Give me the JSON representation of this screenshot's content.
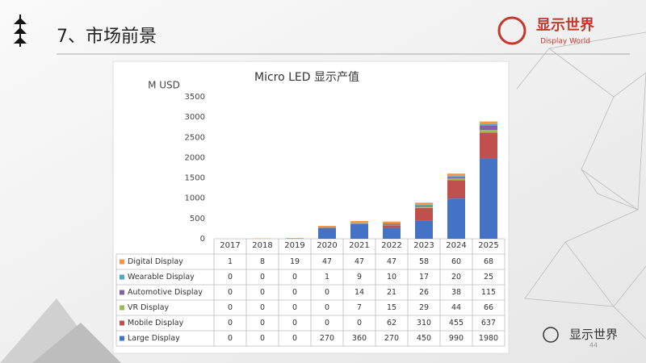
{
  "slide": {
    "title": "7、市场前景",
    "logo_text": "显示世界",
    "logo_subtext": "Display World",
    "footer_text": "显示世界",
    "page_number": "44"
  },
  "chart_data": {
    "type": "stacked-bar",
    "title": "Micro LED 显示产值",
    "y_label": "M USD",
    "categories": [
      "2017",
      "2018",
      "2019",
      "2020",
      "2021",
      "2022",
      "2023",
      "2024",
      "2025"
    ],
    "series": [
      {
        "name": "Digital Display",
        "color": "#f79646",
        "values": [
          1,
          8,
          19,
          47,
          47,
          47,
          58,
          60,
          68
        ]
      },
      {
        "name": "Wearable Display",
        "color": "#4bacc6",
        "values": [
          0,
          0,
          0,
          1,
          9,
          10,
          17,
          20,
          25
        ]
      },
      {
        "name": "Automotive Display",
        "color": "#8064a2",
        "values": [
          0,
          0,
          0,
          0,
          14,
          21,
          26,
          38,
          115
        ]
      },
      {
        "name": "VR Display",
        "color": "#9bbb59",
        "values": [
          0,
          0,
          0,
          0,
          7,
          15,
          29,
          44,
          66
        ]
      },
      {
        "name": "Mobile Display",
        "color": "#c0504d",
        "values": [
          0,
          0,
          0,
          0,
          0,
          62,
          310,
          455,
          637
        ]
      },
      {
        "name": "Large Display",
        "color": "#4472c4",
        "values": [
          0,
          0,
          0,
          270,
          360,
          270,
          450,
          990,
          1980
        ]
      }
    ],
    "ylim": [
      0,
      3500
    ],
    "yticks": [
      0,
      500,
      1000,
      1500,
      2000,
      2500,
      3000,
      3500
    ],
    "grid": false
  }
}
